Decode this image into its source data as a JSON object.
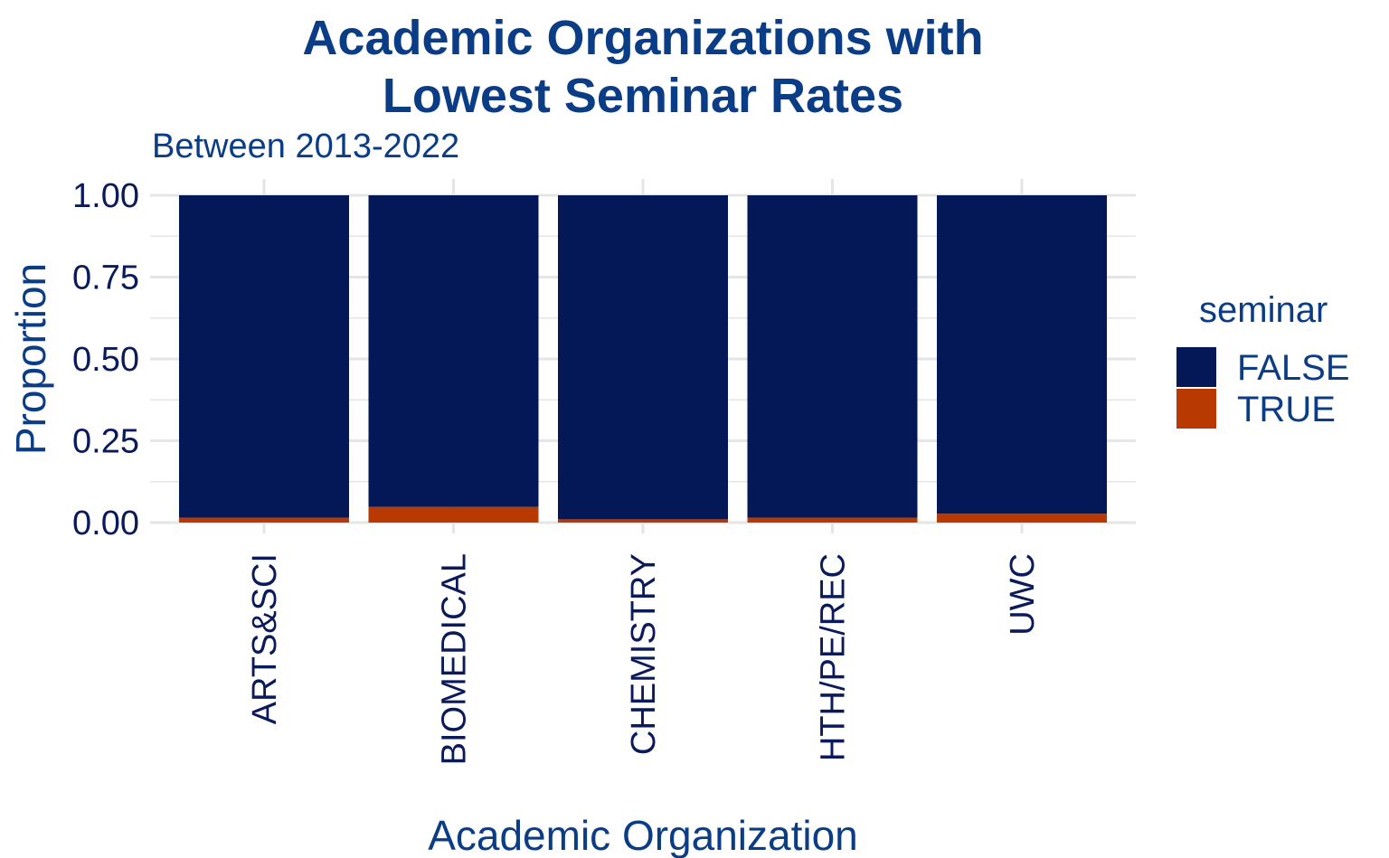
{
  "chart_data": {
    "type": "bar",
    "stacked": true,
    "title_lines": [
      "Academic Organizations with",
      "Lowest Seminar Rates"
    ],
    "subtitle": "Between 2013-2022",
    "xlabel": "Academic Organization",
    "ylabel": "Proportion",
    "ylim": [
      0,
      1
    ],
    "y_ticks": [
      "0.00",
      "0.25",
      "0.50",
      "0.75",
      "1.00"
    ],
    "grid": true,
    "categories": [
      "ARTS&SCI",
      "BIOMEDICAL",
      "CHEMISTRY",
      "HTH/PE/REC",
      "UWC"
    ],
    "series": [
      {
        "name": "FALSE",
        "color": "#041858",
        "values": [
          0.985,
          0.952,
          0.99,
          0.985,
          0.973
        ]
      },
      {
        "name": "TRUE",
        "color": "#b83a02",
        "values": [
          0.015,
          0.048,
          0.01,
          0.015,
          0.027
        ]
      }
    ],
    "legend": {
      "title": "seminar",
      "position": "right"
    }
  },
  "colors": {
    "title": "#0b3d86",
    "tick_text": "#0a1a5a",
    "grid": "#e5e5e5"
  }
}
